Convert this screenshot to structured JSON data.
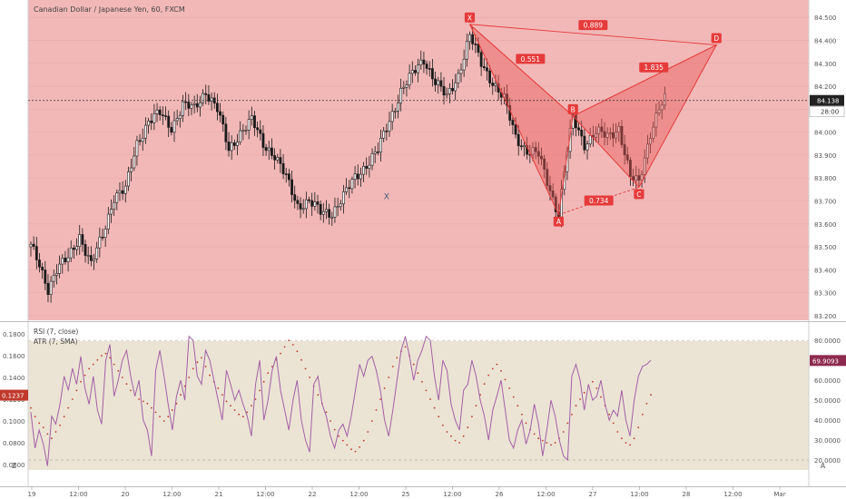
{
  "header": {
    "symbol_title": "Canadian Dollar / Japanese Yen, 60, FXCM"
  },
  "indicators": {
    "rsi_label": "RSI (7, close)",
    "atr_label": "ATR (7, SMA)"
  },
  "corner_labels": {
    "left_bottom": "Z",
    "right_bottom": "A"
  },
  "colors": {
    "price_bg": "#f2b8b8",
    "indicator_bg": "#ebe4d4",
    "candle": "#1a1a1a",
    "pattern_line": "#e63b3b",
    "pattern_fill": "#e85a5a",
    "rsi_line": "#a35fa6",
    "atr_dots": "#c0392b",
    "price_badge": "#222222",
    "rsi_badge": "#8e2a4e",
    "atr_badge": "#c0392b"
  },
  "chart_data": [
    {
      "type": "candlestick",
      "title": "Canadian Dollar / Japanese Yen, 60, FXCM",
      "ylim": [
        83.18,
        84.56
      ],
      "y_ticks": [
        "84.500",
        "84.400",
        "84.300",
        "84.200",
        "84.100",
        "84.000",
        "83.900",
        "83.800",
        "83.700",
        "83.600",
        "83.500",
        "83.400",
        "83.300",
        "83.200"
      ],
      "x_ticks": [
        "19",
        "12:00",
        "20",
        "12:00",
        "21",
        "12:00",
        "22",
        "12:00",
        "25",
        "12:00",
        "26",
        "12:00",
        "27",
        "12:00",
        "28",
        "12:00",
        "Mar"
      ],
      "current_price": "84.138",
      "countdown": "28:00",
      "close_path": [
        [
          0,
          83.5
        ],
        [
          3,
          83.42
        ],
        [
          6,
          83.32
        ],
        [
          9,
          83.4
        ],
        [
          13,
          83.45
        ],
        [
          17,
          83.55
        ],
        [
          21,
          83.42
        ],
        [
          25,
          83.55
        ],
        [
          29,
          83.72
        ],
        [
          33,
          83.75
        ],
        [
          37,
          83.95
        ],
        [
          41,
          84.05
        ],
        [
          45,
          84.08
        ],
        [
          49,
          84.02
        ],
        [
          53,
          84.12
        ],
        [
          57,
          84.1
        ],
        [
          61,
          84.18
        ],
        [
          65,
          84.1
        ],
        [
          69,
          83.92
        ],
        [
          73,
          84.0
        ],
        [
          77,
          84.05
        ],
        [
          81,
          83.95
        ],
        [
          85,
          83.9
        ],
        [
          89,
          83.8
        ],
        [
          93,
          83.68
        ],
        [
          97,
          83.7
        ],
        [
          101,
          83.65
        ],
        [
          105,
          83.65
        ],
        [
          109,
          83.72
        ],
        [
          113,
          83.8
        ],
        [
          117,
          83.86
        ],
        [
          121,
          83.92
        ],
        [
          125,
          84.05
        ],
        [
          129,
          84.18
        ],
        [
          133,
          84.25
        ],
        [
          137,
          84.32
        ],
        [
          141,
          84.22
        ],
        [
          145,
          84.15
        ],
        [
          149,
          84.25
        ],
        [
          153,
          84.42
        ],
        [
          157,
          84.3
        ],
        [
          161,
          84.22
        ],
        [
          165,
          84.14
        ],
        [
          169,
          83.98
        ],
        [
          173,
          83.92
        ],
        [
          177,
          83.9
        ],
        [
          181,
          83.75
        ],
        [
          184,
          83.64
        ],
        [
          187,
          83.92
        ],
        [
          189,
          84.06
        ],
        [
          193,
          83.95
        ],
        [
          197,
          84.0
        ],
        [
          201,
          83.98
        ],
        [
          205,
          84.02
        ],
        [
          209,
          83.8
        ],
        [
          212,
          83.78
        ],
        [
          216,
          84.0
        ],
        [
          219,
          84.1
        ],
        [
          221,
          84.14
        ]
      ],
      "harmonic_pattern": {
        "points": [
          {
            "label": "X",
            "index": 153,
            "price": 84.47
          },
          {
            "label": "A",
            "index": 184,
            "price": 83.64
          },
          {
            "label": "B",
            "index": 189,
            "price": 84.07
          },
          {
            "label": "C",
            "index": 212,
            "price": 83.76
          },
          {
            "label": "D",
            "index": 239,
            "price": 84.38
          }
        ],
        "ratios": [
          {
            "label": "0.551",
            "between": "XB"
          },
          {
            "label": "0.734",
            "between": "AC"
          },
          {
            "label": "1.835",
            "between": "BD"
          },
          {
            "label": "0.889",
            "between": "XD"
          }
        ],
        "extra_marker": {
          "label": "X",
          "index": 124,
          "price": 83.72
        }
      }
    },
    {
      "type": "line",
      "title": "RSI (7, close)",
      "ylim": [
        15,
        86
      ],
      "right_ticks": [
        "80.0000",
        "70.0000",
        "60.0000",
        "50.0000",
        "40.0000",
        "30.0000",
        "20.0000"
      ],
      "levels": [
        80,
        20
      ],
      "current_value": "69.9093",
      "series": [
        {
          "name": "RSI (7, close)",
          "values": [
            44,
            26,
            35,
            28,
            17,
            42,
            38,
            48,
            62,
            55,
            66,
            58,
            72,
            56,
            48,
            62,
            45,
            38,
            70,
            78,
            52,
            60,
            70,
            75,
            62,
            52,
            60,
            40,
            35,
            22,
            65,
            75,
            62,
            48,
            35,
            52,
            60,
            50,
            82,
            80,
            62,
            58,
            75,
            70,
            60,
            50,
            40,
            65,
            58,
            50,
            55,
            48,
            42,
            32,
            58,
            70,
            40,
            50,
            65,
            72,
            55,
            45,
            35,
            50,
            60,
            40,
            30,
            24,
            58,
            62,
            48,
            42,
            32,
            26,
            35,
            38,
            32,
            42,
            55,
            68,
            62,
            70,
            72,
            65,
            55,
            40,
            32,
            45,
            60,
            75,
            82,
            72,
            60,
            70,
            75,
            82,
            80,
            62,
            50,
            70,
            65,
            48,
            40,
            35,
            55,
            58,
            70,
            62,
            50,
            42,
            30,
            45,
            52,
            60,
            45,
            30,
            26,
            35,
            40,
            28,
            35,
            48,
            38,
            22,
            35,
            50,
            42,
            30,
            22,
            20,
            62,
            68,
            60,
            45,
            58,
            50,
            52,
            60,
            48,
            40,
            45,
            42,
            55,
            40,
            32,
            50,
            62,
            67,
            68,
            70
          ]
        }
      ]
    },
    {
      "type": "scatter",
      "title": "ATR (7, SMA)",
      "ylim": [
        0.055,
        0.185
      ],
      "left_ticks": [
        "0.1800",
        "0.1600",
        "0.1400",
        "0.1200",
        "0.1000",
        "0.0800",
        "0.0600"
      ],
      "current_value": "0.1237",
      "series": [
        {
          "name": "ATR (7, SMA)",
          "values": [
            0.112,
            0.104,
            0.098,
            0.094,
            0.088,
            0.084,
            0.09,
            0.096,
            0.104,
            0.112,
            0.12,
            0.128,
            0.136,
            0.142,
            0.148,
            0.152,
            0.156,
            0.16,
            0.162,
            0.158,
            0.152,
            0.146,
            0.14,
            0.134,
            0.128,
            0.124,
            0.12,
            0.118,
            0.116,
            0.112,
            0.108,
            0.104,
            0.1,
            0.104,
            0.11,
            0.116,
            0.124,
            0.132,
            0.14,
            0.148,
            0.154,
            0.158,
            0.15,
            0.142,
            0.136,
            0.13,
            0.124,
            0.118,
            0.114,
            0.11,
            0.106,
            0.104,
            0.108,
            0.114,
            0.12,
            0.128,
            0.136,
            0.144,
            0.15,
            0.156,
            0.162,
            0.168,
            0.174,
            0.17,
            0.164,
            0.156,
            0.148,
            0.14,
            0.132,
            0.124,
            0.116,
            0.108,
            0.1,
            0.092,
            0.086,
            0.082,
            0.078,
            0.074,
            0.072,
            0.076,
            0.082,
            0.09,
            0.1,
            0.11,
            0.12,
            0.13,
            0.14,
            0.15,
            0.158,
            0.164,
            0.168,
            0.16,
            0.152,
            0.144,
            0.136,
            0.128,
            0.12,
            0.112,
            0.104,
            0.096,
            0.09,
            0.086,
            0.082,
            0.08,
            0.086,
            0.094,
            0.104,
            0.114,
            0.124,
            0.134,
            0.142,
            0.148,
            0.152,
            0.146,
            0.138,
            0.13,
            0.122,
            0.114,
            0.106,
            0.098,
            0.092,
            0.088,
            0.084,
            0.082,
            0.08,
            0.078,
            0.08,
            0.084,
            0.09,
            0.098,
            0.106,
            0.114,
            0.12,
            0.126,
            0.132,
            0.136,
            0.13,
            0.122,
            0.114,
            0.106,
            0.098,
            0.09,
            0.084,
            0.08,
            0.078,
            0.084,
            0.094,
            0.106,
            0.116,
            0.124
          ]
        }
      ]
    }
  ]
}
